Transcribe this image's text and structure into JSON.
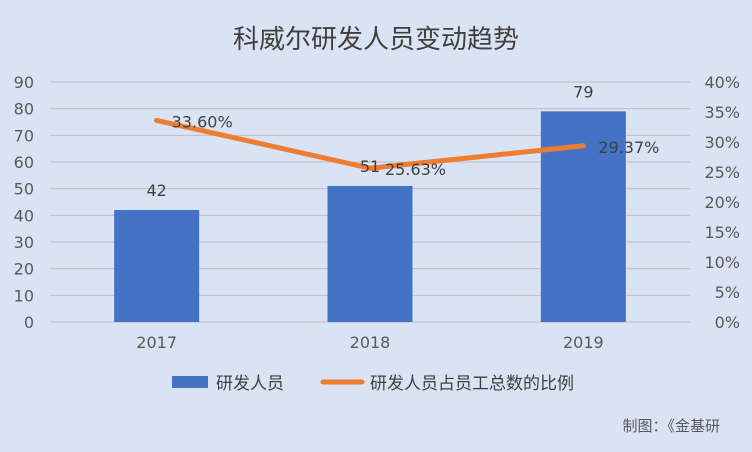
{
  "chart_data": {
    "type": "bar",
    "title": "科威尔研发人员变动趋势",
    "categories": [
      "2017",
      "2018",
      "2019"
    ],
    "series": [
      {
        "name": "研发人员",
        "type": "bar",
        "axis": "left",
        "values": [
          42,
          51,
          79
        ],
        "labels": [
          "42",
          "51",
          "79"
        ],
        "color": "#4472c4"
      },
      {
        "name": "研发人员占员工总数的比例",
        "type": "line",
        "axis": "right",
        "values": [
          33.6,
          25.63,
          29.37
        ],
        "labels": [
          "33.60%",
          "25.63%",
          "29.37%"
        ],
        "color": "#ed7d31"
      }
    ],
    "y_left": {
      "min": 0,
      "max": 90,
      "ticks": [
        "0",
        "10",
        "20",
        "30",
        "40",
        "50",
        "60",
        "70",
        "80",
        "90"
      ]
    },
    "y_right": {
      "min": 0,
      "max": 40,
      "ticks": [
        "0%",
        "5%",
        "10%",
        "15%",
        "20%",
        "25%",
        "30%",
        "35%",
        "40%"
      ]
    },
    "grid": true,
    "legend_position": "bottom"
  },
  "source_note": "制图：《金基研"
}
